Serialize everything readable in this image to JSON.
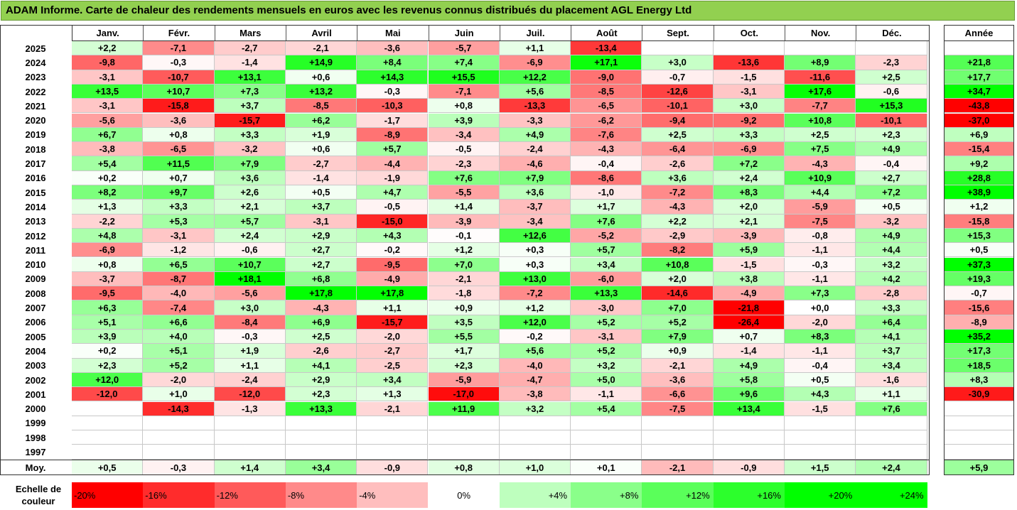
{
  "title": "ADAM Informe. Carte de chaleur des rendements mensuels en euros avec les revenus connus distribués du placement AGL Energy Ltd",
  "chart_data": {
    "type": "heatmap",
    "title": "ADAM Informe. Carte de chaleur des rendements mensuels en euros avec les revenus connus distribués du placement AGL Energy Ltd",
    "columns": [
      "Janv.",
      "Févr.",
      "Mars",
      "Avril",
      "Mai",
      "Juin",
      "Juil.",
      "Août",
      "Sept.",
      "Oct.",
      "Nov.",
      "Déc."
    ],
    "year_column_label": "Année",
    "rows": [
      {
        "year": "2025",
        "values": [
          "+2,2",
          "-7,1",
          "-2,7",
          "-2,1",
          "-3,6",
          "-5,7",
          "+1,1",
          "-13,4",
          "",
          "",
          "",
          ""
        ],
        "annual": ""
      },
      {
        "year": "2024",
        "values": [
          "-9,8",
          "-0,3",
          "-1,4",
          "+14,9",
          "+8,4",
          "+7,4",
          "-6,9",
          "+17,1",
          "+3,0",
          "-13,6",
          "+8,9",
          "-2,3"
        ],
        "annual": "+21,8"
      },
      {
        "year": "2023",
        "values": [
          "-3,1",
          "-10,7",
          "+13,1",
          "+0,6",
          "+14,3",
          "+15,5",
          "+12,2",
          "-9,0",
          "-0,7",
          "-1,5",
          "-11,6",
          "+2,5"
        ],
        "annual": "+17,7"
      },
      {
        "year": "2022",
        "values": [
          "+13,5",
          "+10,7",
          "+7,3",
          "+13,2",
          "-0,3",
          "-7,1",
          "+5,6",
          "-8,5",
          "-12,6",
          "-3,1",
          "+17,6",
          "-0,6"
        ],
        "annual": "+34,7"
      },
      {
        "year": "2021",
        "values": [
          "-3,1",
          "-15,8",
          "+3,7",
          "-8,5",
          "-10,3",
          "+0,8",
          "-13,3",
          "-6,5",
          "-10,1",
          "+3,0",
          "-7,7",
          "+15,3"
        ],
        "annual": "-43,8"
      },
      {
        "year": "2020",
        "values": [
          "-5,6",
          "-3,6",
          "-15,7",
          "+6,2",
          "-1,7",
          "+3,9",
          "-3,3",
          "-6,2",
          "-9,4",
          "-9,2",
          "+10,8",
          "-10,1"
        ],
        "annual": "-37,0"
      },
      {
        "year": "2019",
        "values": [
          "+6,7",
          "+0,8",
          "+3,3",
          "+1,9",
          "-8,9",
          "-3,4",
          "+4,9",
          "-7,6",
          "+2,5",
          "+3,3",
          "+2,5",
          "+2,3"
        ],
        "annual": "+6,9"
      },
      {
        "year": "2018",
        "values": [
          "-3,8",
          "-6,5",
          "-3,2",
          "+0,6",
          "+5,7",
          "-0,5",
          "-2,4",
          "-4,3",
          "-6,4",
          "-6,9",
          "+7,5",
          "+4,9"
        ],
        "annual": "-15,4"
      },
      {
        "year": "2017",
        "values": [
          "+5,4",
          "+11,5",
          "+7,9",
          "-2,7",
          "-4,4",
          "-2,3",
          "-4,6",
          "-0,4",
          "-2,6",
          "+7,2",
          "-4,3",
          "-0,4"
        ],
        "annual": "+9,2"
      },
      {
        "year": "2016",
        "values": [
          "+0,2",
          "+0,7",
          "+3,6",
          "-1,4",
          "-1,9",
          "+7,6",
          "+7,9",
          "-8,6",
          "+3,6",
          "+2,4",
          "+10,9",
          "+2,7"
        ],
        "annual": "+28,8"
      },
      {
        "year": "2015",
        "values": [
          "+8,2",
          "+9,7",
          "+2,6",
          "+0,5",
          "+4,7",
          "-5,5",
          "+3,6",
          "-1,0",
          "-7,2",
          "+8,3",
          "+4,4",
          "+7,2"
        ],
        "annual": "+38,9"
      },
      {
        "year": "2014",
        "values": [
          "+1,3",
          "+3,3",
          "+2,1",
          "+3,7",
          "-0,5",
          "+1,4",
          "-3,7",
          "+1,7",
          "-4,3",
          "+2,0",
          "-5,9",
          "+0,5"
        ],
        "annual": "+1,2"
      },
      {
        "year": "2013",
        "values": [
          "-2,2",
          "+5,3",
          "+5,7",
          "-3,1",
          "-15,0",
          "-3,9",
          "-3,4",
          "+7,6",
          "+2,2",
          "+2,1",
          "-7,5",
          "-3,2"
        ],
        "annual": "-15,8"
      },
      {
        "year": "2012",
        "values": [
          "+4,8",
          "-3,1",
          "+2,4",
          "+2,9",
          "+4,3",
          "-0,1",
          "+12,6",
          "-5,2",
          "-2,9",
          "-3,9",
          "-0,8",
          "+4,9"
        ],
        "annual": "+15,3"
      },
      {
        "year": "2011",
        "values": [
          "-6,9",
          "-1,2",
          "-0,6",
          "+2,7",
          "-0,2",
          "+1,2",
          "+0,3",
          "+5,7",
          "-8,2",
          "+5,9",
          "-1,1",
          "+4,4"
        ],
        "annual": "+0,5"
      },
      {
        "year": "2010",
        "values": [
          "+0,8",
          "+6,5",
          "+10,7",
          "+2,7",
          "-9,5",
          "+7,0",
          "+0,3",
          "+3,4",
          "+10,8",
          "-1,5",
          "-0,3",
          "+3,2"
        ],
        "annual": "+37,3"
      },
      {
        "year": "2009",
        "values": [
          "-3,7",
          "-8,7",
          "+18,1",
          "+6,8",
          "-4,9",
          "-2,1",
          "+13,0",
          "-6,0",
          "+2,0",
          "+3,8",
          "-1,1",
          "+4,2"
        ],
        "annual": "+19,3"
      },
      {
        "year": "2008",
        "values": [
          "-9,5",
          "-4,0",
          "-5,6",
          "+17,8",
          "+17,8",
          "-1,8",
          "-7,2",
          "+13,3",
          "-14,6",
          "-4,9",
          "+7,3",
          "-2,8"
        ],
        "annual": "-0,7"
      },
      {
        "year": "2007",
        "values": [
          "+6,3",
          "-7,4",
          "+3,0",
          "-4,3",
          "+1,1",
          "+0,9",
          "+1,2",
          "-3,0",
          "+7,0",
          "-21,8",
          "+0,0",
          "+3,3"
        ],
        "annual": "-15,6"
      },
      {
        "year": "2006",
        "values": [
          "+5,1",
          "+6,6",
          "-8,4",
          "+6,9",
          "-15,7",
          "+3,5",
          "+12,0",
          "+5,2",
          "+5,2",
          "-26,4",
          "-2,0",
          "+6,4"
        ],
        "annual": "-8,9"
      },
      {
        "year": "2005",
        "values": [
          "+3,9",
          "+4,0",
          "-0,3",
          "+2,5",
          "-2,0",
          "+5,5",
          "-0,2",
          "-3,1",
          "+7,9",
          "+0,7",
          "+8,3",
          "+4,1"
        ],
        "annual": "+35,2"
      },
      {
        "year": "2004",
        "values": [
          "+0,2",
          "+5,1",
          "+1,9",
          "-2,6",
          "-2,7",
          "+1,7",
          "+5,6",
          "+5,2",
          "+0,9",
          "-1,4",
          "-1,1",
          "+3,7"
        ],
        "annual": "+17,3"
      },
      {
        "year": "2003",
        "values": [
          "+2,3",
          "+5,2",
          "+1,1",
          "+4,1",
          "-2,5",
          "+2,3",
          "-4,0",
          "+3,2",
          "-2,1",
          "+4,9",
          "-0,4",
          "+3,4"
        ],
        "annual": "+18,5"
      },
      {
        "year": "2002",
        "values": [
          "+12,0",
          "-2,0",
          "-2,4",
          "+2,9",
          "+3,4",
          "-5,9",
          "-4,7",
          "+5,0",
          "-3,6",
          "+5,8",
          "+0,5",
          "-1,6"
        ],
        "annual": "+8,3"
      },
      {
        "year": "2001",
        "values": [
          "-12,0",
          "+1,0",
          "-12,0",
          "+2,3",
          "+1,3",
          "-17,0",
          "-3,8",
          "-1,1",
          "-6,6",
          "+9,6",
          "+4,3",
          "+1,1"
        ],
        "annual": "-30,9"
      },
      {
        "year": "2000",
        "values": [
          "",
          "-14,3",
          "-1,3",
          "+13,3",
          "-2,1",
          "+11,9",
          "+3,2",
          "+5,4",
          "-7,5",
          "+13,4",
          "-1,5",
          "+7,6"
        ],
        "annual": ""
      },
      {
        "year": "1999",
        "values": [
          "",
          "",
          "",
          "",
          "",
          "",
          "",
          "",
          "",
          "",
          "",
          ""
        ],
        "annual": ""
      },
      {
        "year": "1998",
        "values": [
          "",
          "",
          "",
          "",
          "",
          "",
          "",
          "",
          "",
          "",
          "",
          ""
        ],
        "annual": ""
      },
      {
        "year": "1997",
        "values": [
          "",
          "",
          "",
          "",
          "",
          "",
          "",
          "",
          "",
          "",
          "",
          ""
        ],
        "annual": ""
      }
    ],
    "average": {
      "label": "Moy.",
      "values": [
        "+0,5",
        "-0,3",
        "+1,4",
        "+3,4",
        "-0,9",
        "+0,8",
        "+1,0",
        "+0,1",
        "-2,1",
        "-0,9",
        "+1,5",
        "+2,4"
      ],
      "annual": "+5,9"
    },
    "color_scale": {
      "label": "Echelle de couleur",
      "steps": [
        {
          "label": "-20%",
          "value": -20
        },
        {
          "label": "-16%",
          "value": -16
        },
        {
          "label": "-12%",
          "value": -12
        },
        {
          "label": "-8%",
          "value": -8
        },
        {
          "label": "-4%",
          "value": -4
        },
        {
          "label": "0%",
          "value": 0
        },
        {
          "label": "+4%",
          "value": 4
        },
        {
          "label": "+8%",
          "value": 8
        },
        {
          "label": "+12%",
          "value": 12
        },
        {
          "label": "+16%",
          "value": 16
        },
        {
          "label": "+20%",
          "value": 20
        },
        {
          "label": "+24%",
          "value": 24
        }
      ],
      "negative_color": "#ff0000",
      "neutral_color": "#ffffff",
      "positive_color": "#00ff00"
    }
  }
}
